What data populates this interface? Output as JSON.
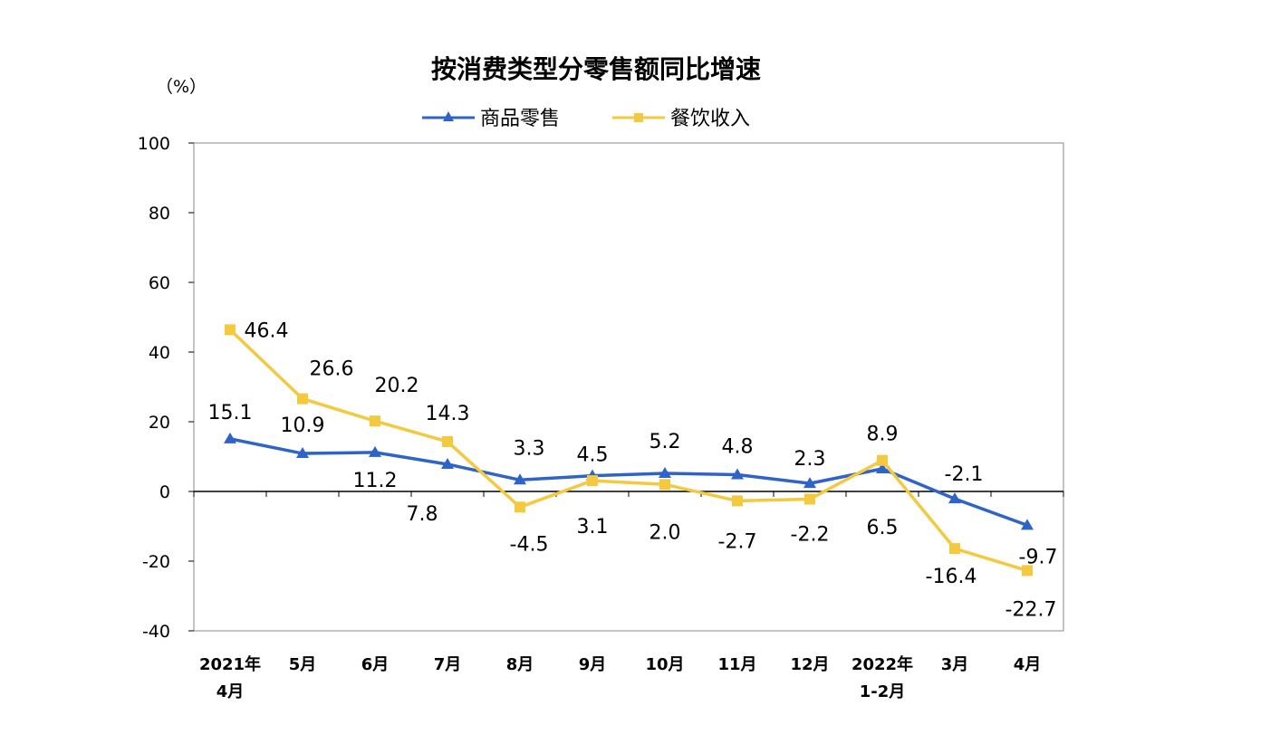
{
  "chart_data": {
    "type": "line",
    "title": "按消费类型分零售额同比增速",
    "unit_label": "（%）",
    "ylim": [
      -40,
      100
    ],
    "yticks": [
      "100",
      "80",
      "60",
      "40",
      "20",
      "0",
      "-20",
      "-40"
    ],
    "ytick_values": [
      100,
      80,
      60,
      40,
      20,
      0,
      -20,
      -40
    ],
    "categories": [
      [
        "2021年",
        "4月"
      ],
      [
        "5月"
      ],
      [
        "6月"
      ],
      [
        "7月"
      ],
      [
        "8月"
      ],
      [
        "9月"
      ],
      [
        "10月"
      ],
      [
        "11月"
      ],
      [
        "12月"
      ],
      [
        "2022年",
        "1-2月"
      ],
      [
        "3月"
      ],
      [
        "4月"
      ]
    ],
    "series": [
      {
        "name": "商品零售",
        "color": "#2e63c8",
        "marker": "triangle",
        "values": [
          15.1,
          10.9,
          11.2,
          7.8,
          3.3,
          4.5,
          5.2,
          4.8,
          2.3,
          6.5,
          -2.1,
          -9.7
        ],
        "labels": [
          "15.1",
          "10.9",
          "11.2",
          "7.8",
          "3.3",
          "4.5",
          "5.2",
          "4.8",
          "2.3",
          "6.5",
          "-2.1",
          "-9.7"
        ]
      },
      {
        "name": "餐饮收入",
        "color": "#f3c93f",
        "marker": "square",
        "values": [
          46.4,
          26.6,
          20.2,
          14.3,
          -4.5,
          3.1,
          2.0,
          -2.7,
          -2.2,
          8.9,
          -16.4,
          -22.7
        ],
        "labels": [
          "46.4",
          "26.6",
          "20.2",
          "14.3",
          "-4.5",
          "3.1",
          "2.0",
          "-2.7",
          "-2.2",
          "8.9",
          "-16.4",
          "-22.7"
        ]
      }
    ],
    "grid": false,
    "legend_position": "top-center"
  }
}
